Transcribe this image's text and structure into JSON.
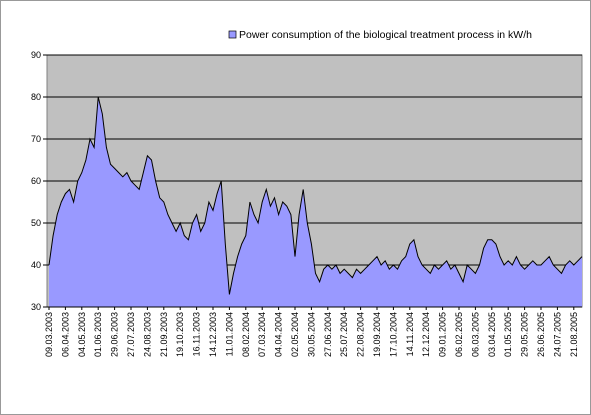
{
  "chart_data": {
    "type": "area",
    "categories": [
      "09.03.2003",
      null,
      null,
      null,
      "06.04.2003",
      null,
      null,
      null,
      "04.05.2003",
      null,
      null,
      null,
      "01.06.2003",
      null,
      null,
      null,
      "29.06.2003",
      null,
      null,
      null,
      "27.07.2003",
      null,
      null,
      null,
      "24.08.2003",
      null,
      null,
      null,
      "21.09.2003",
      null,
      null,
      null,
      "19.10.2003",
      null,
      null,
      null,
      "16.11.2003",
      null,
      null,
      null,
      "14.12.2003",
      null,
      null,
      null,
      "11.01.2004",
      null,
      null,
      null,
      "08.02.2004",
      null,
      null,
      null,
      "07.03.2004",
      null,
      null,
      null,
      "04.04.2004",
      null,
      null,
      null,
      "02.05.2004",
      null,
      null,
      null,
      "30.05.2004",
      null,
      null,
      null,
      "27.06.2004",
      null,
      null,
      null,
      "25.07.2004",
      null,
      null,
      null,
      "22.08.2004",
      null,
      null,
      null,
      "19.09.2004",
      null,
      null,
      null,
      "17.10.2004",
      null,
      null,
      null,
      "14.11.2004",
      null,
      null,
      null,
      "12.12.2004",
      null,
      null,
      null,
      "09.01.2005",
      null,
      null,
      null,
      "06.02.2005",
      null,
      null,
      null,
      "06.03.2005",
      null,
      null,
      null,
      "03.04.2005",
      null,
      null,
      null,
      "01.05.2005",
      null,
      null,
      null,
      "29.05.2005",
      null,
      null,
      null,
      "26.06.2005",
      null,
      null,
      null,
      "24.07.2005",
      null,
      null,
      null,
      "21.08.2005",
      null,
      null
    ],
    "series": [
      {
        "name": "Power consumption of the biological treatment process in kW/h",
        "color": "#9999ff",
        "line_color": "#000000",
        "values": [
          40,
          47,
          52,
          55,
          57,
          58,
          55,
          60,
          62,
          65,
          70,
          68,
          80,
          76,
          68,
          64,
          63,
          62,
          61,
          62,
          60,
          59,
          58,
          62,
          66,
          65,
          60,
          56,
          55,
          52,
          50,
          48,
          50,
          47,
          46,
          50,
          52,
          48,
          50,
          55,
          53,
          57,
          60,
          45,
          33,
          38,
          42,
          45,
          47,
          55,
          52,
          50,
          55,
          58,
          54,
          56,
          52,
          55,
          54,
          52,
          42,
          52,
          58,
          50,
          45,
          38,
          36,
          39,
          40,
          39,
          40,
          38,
          39,
          38,
          37,
          39,
          38,
          39,
          40,
          41,
          42,
          40,
          41,
          39,
          40,
          39,
          41,
          42,
          45,
          46,
          42,
          40,
          39,
          38,
          40,
          39,
          40,
          41,
          39,
          40,
          38,
          36,
          40,
          39,
          38,
          40,
          44,
          46,
          46,
          45,
          42,
          40,
          41,
          40,
          42,
          40,
          39,
          40,
          41,
          40,
          40,
          41,
          42,
          40,
          39,
          38,
          40,
          41,
          40,
          41,
          42
        ]
      }
    ],
    "ylim": [
      30,
      90
    ],
    "yticks": [
      30,
      40,
      50,
      60,
      70,
      80,
      90
    ],
    "grid": true,
    "plot_background": "#c0c0c0",
    "legend": "top-right"
  }
}
